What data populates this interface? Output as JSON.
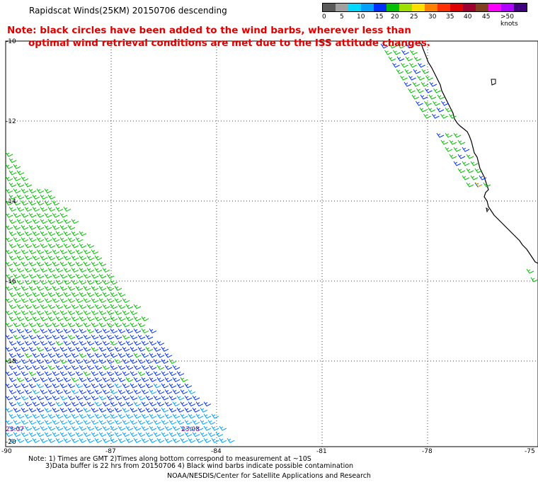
{
  "title": "Rapidscat Winds(25KM) 20150706 descending",
  "note": {
    "line1": "Note: black circles have been added to the wind barbs, wherever less than",
    "line2": "optimal wind retrieval conditions are met due to the ISS attitude changes."
  },
  "legend": {
    "labels": [
      "0",
      "5",
      "10",
      "15",
      "20",
      "25",
      "30",
      "35",
      "40",
      "45",
      ">50 knots"
    ],
    "colors": [
      "#5a5a5a",
      "#a0a0a0",
      "#00d8ff",
      "#00a0ff",
      "#0030ff",
      "#00c000",
      "#a0e000",
      "#ffe000",
      "#ff8000",
      "#ff3000",
      "#e00000",
      "#a00030",
      "#804020",
      "#ff00ff",
      "#b000ff",
      "#400080"
    ]
  },
  "map": {
    "lat_labels": [
      "-10",
      "-12",
      "-14",
      "-16",
      "-18",
      "-20"
    ],
    "lon_labels": [
      "-90",
      "-87",
      "-84",
      "-81",
      "-78",
      "-75"
    ],
    "time_labels": [
      "23:07",
      "23:08"
    ]
  },
  "footer": {
    "line1": "Note: 1) Times are GMT 2)Times along bottom correspond to measurement at ~10S",
    "line2": "3)Data buffer is 22 hrs from 20150706 4) Black wind barbs indicate possible contamination",
    "credit": "NOAA/NESDIS/Center for Satellite Applications and Research"
  }
}
